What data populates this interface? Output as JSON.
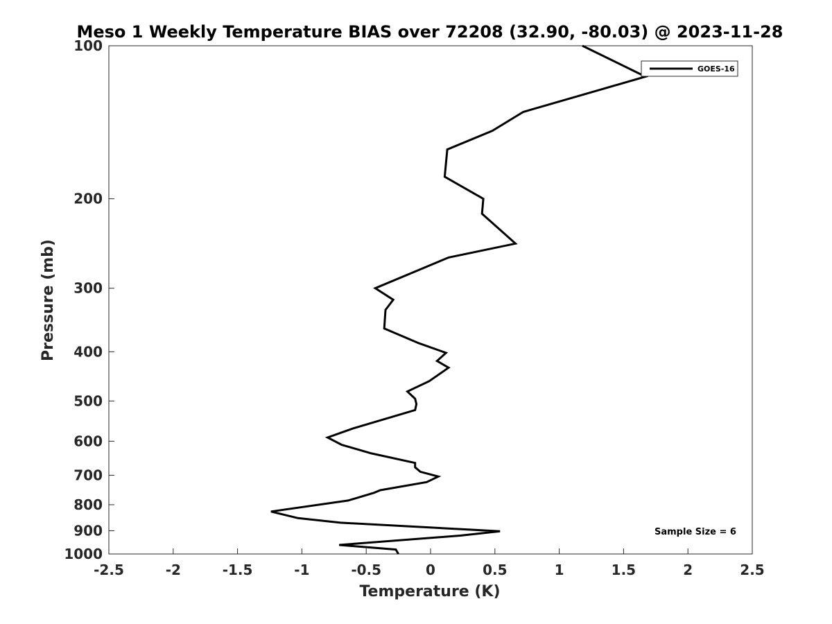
{
  "chart_data": {
    "type": "line",
    "title": "Meso 1 Weekly Temperature BIAS over 72208 (32.90, -80.03) @ 2023-11-28",
    "xlabel": "Temperature (K)",
    "ylabel": "Pressure (mb)",
    "xlim": [
      -2.5,
      2.5
    ],
    "ylim": [
      100,
      1000
    ],
    "yscale": "log",
    "yreversed": true,
    "grid": false,
    "legend_position": "top-right",
    "xticks": [
      "-2.5",
      "-2",
      "-1.5",
      "-1",
      "-0.5",
      "0",
      "0.5",
      "1",
      "1.5",
      "2",
      "2.5"
    ],
    "yticks": [
      "100",
      "200",
      "300",
      "400",
      "500",
      "600",
      "700",
      "800",
      "900",
      "1000"
    ],
    "annotation": "Sample Size = 6",
    "series": [
      {
        "name": "GOES-16",
        "color": "#000000",
        "points": [
          [
            1.18,
            100
          ],
          [
            1.67,
            115
          ],
          [
            0.72,
            135
          ],
          [
            0.48,
            147
          ],
          [
            0.13,
            160
          ],
          [
            0.11,
            181
          ],
          [
            0.41,
            200
          ],
          [
            0.4,
            214
          ],
          [
            0.66,
            245
          ],
          [
            0.14,
            261
          ],
          [
            -0.43,
            300
          ],
          [
            -0.29,
            316
          ],
          [
            -0.35,
            331
          ],
          [
            -0.36,
            360
          ],
          [
            -0.09,
            385
          ],
          [
            0.12,
            402
          ],
          [
            0.05,
            417
          ],
          [
            0.14,
            430
          ],
          [
            -0.01,
            457
          ],
          [
            -0.18,
            479
          ],
          [
            -0.12,
            495
          ],
          [
            -0.11,
            507
          ],
          [
            -0.12,
            521
          ],
          [
            -0.6,
            566
          ],
          [
            -0.8,
            590
          ],
          [
            -0.69,
            610
          ],
          [
            -0.46,
            634
          ],
          [
            -0.12,
            662
          ],
          [
            -0.12,
            675
          ],
          [
            -0.08,
            689
          ],
          [
            0.06,
            704
          ],
          [
            -0.03,
            722
          ],
          [
            -0.39,
            749
          ],
          [
            -0.44,
            758
          ],
          [
            -0.64,
            785
          ],
          [
            -1.24,
            825
          ],
          [
            -1.03,
            850
          ],
          [
            -0.7,
            868
          ],
          [
            0.54,
            902
          ],
          [
            0.23,
            920
          ],
          [
            -0.71,
            960
          ],
          [
            -0.27,
            980
          ],
          [
            -0.25,
            1000
          ]
        ]
      }
    ]
  }
}
